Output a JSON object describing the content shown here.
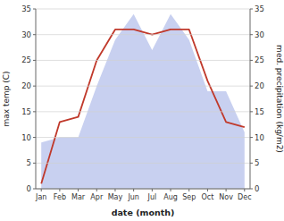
{
  "chart_data": {
    "type": "line",
    "categories": [
      "Jan",
      "Feb",
      "Mar",
      "Apr",
      "May",
      "Jun",
      "Jul",
      "Aug",
      "Sep",
      "Oct",
      "Nov",
      "Dec"
    ],
    "series": [
      {
        "type": "area",
        "axis": "y2",
        "color": "#c8d0f0",
        "values": [
          9,
          10,
          10,
          20,
          29,
          34,
          27,
          34,
          29,
          19,
          19,
          11
        ]
      },
      {
        "type": "line",
        "color": "#c0392b",
        "values": [
          1,
          13,
          14,
          25,
          31,
          31,
          30,
          31,
          31,
          21,
          13,
          12
        ]
      }
    ],
    "xlabel": "date (month)",
    "ylabel": "max temp (C)",
    "y2label": "med. precipitation (kg/m2)",
    "ylim": [
      0,
      35
    ],
    "yticks": [
      0,
      5,
      10,
      15,
      20,
      25,
      30,
      35
    ],
    "y2lim": [
      0,
      35
    ],
    "y2ticks": [
      0,
      5,
      10,
      15,
      20,
      25,
      30,
      35
    ],
    "grid": true
  }
}
